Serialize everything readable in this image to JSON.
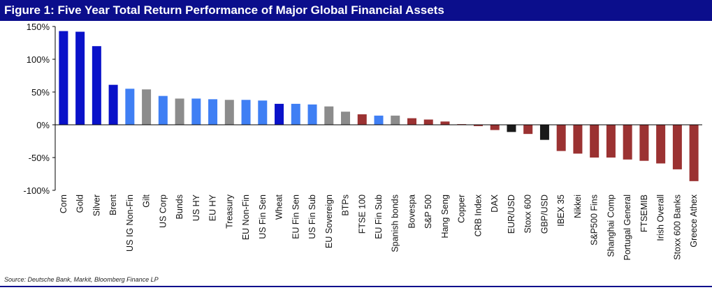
{
  "title": "Figure 1: Five Year Total Return Performance of Major Global Financial Assets",
  "source": "Source: Deutsche Bank, Markit, Bloomberg Finance LP",
  "colors": {
    "title_bg": "#0b0e8c",
    "commodity": "#0a12c9",
    "credit": "#3f7ff4",
    "govt_equity": "#8c8c8c",
    "negative": "#9b3232",
    "fx": "#1a1a1a"
  },
  "chart_data": {
    "type": "bar",
    "title": "Figure 1: Five Year Total Return Performance of Major Global Financial Assets",
    "xlabel": "",
    "ylabel": "",
    "ylim": [
      -100,
      150
    ],
    "yticks": [
      150,
      100,
      50,
      0,
      -50,
      -100
    ],
    "ytick_labels": [
      "150%",
      "100%",
      "50%",
      "0%",
      "-50%",
      "-100%"
    ],
    "grid": false,
    "categories": [
      "Corn",
      "Gold",
      "Silver",
      "Brent",
      "US IG Non-Fin",
      "Gilt",
      "US Corp",
      "Bunds",
      "US HY",
      "EU HY",
      "Treasury",
      "EU Non-Fin",
      "US Fin Sen",
      "Wheat",
      "EU Fin Sen",
      "US Fin Sub",
      "EU Sovereign",
      "BTPs",
      "FTSE 100",
      "EU Fin Sub",
      "Spanish bonds",
      "Bovespa",
      "S&P 500",
      "Hang Seng",
      "Copper",
      "CRB Index",
      "DAX",
      "EUR/USD",
      "Stoxx 600",
      "GBP/USD",
      "IBEX 35",
      "Nikkei",
      "S&P500 Fins",
      "Shanghai Comp",
      "Portugal General",
      "FTSEMIB",
      "Irish Overall",
      "Stoxx 600 Banks",
      "Greece Athex"
    ],
    "values": [
      143,
      142,
      120,
      61,
      55,
      54,
      44,
      40,
      40,
      39,
      38,
      38,
      37,
      32,
      32,
      31,
      28,
      20,
      16,
      14,
      14,
      10,
      8,
      5,
      1,
      -2,
      -8,
      -11,
      -14,
      -23,
      -40,
      -44,
      -50,
      -50,
      -53,
      -55,
      -59,
      -68,
      -86
    ],
    "bar_colors": [
      "#0a12c9",
      "#0a12c9",
      "#0a12c9",
      "#0a12c9",
      "#3f7ff4",
      "#8c8c8c",
      "#3f7ff4",
      "#8c8c8c",
      "#3f7ff4",
      "#3f7ff4",
      "#8c8c8c",
      "#3f7ff4",
      "#3f7ff4",
      "#0a12c9",
      "#3f7ff4",
      "#3f7ff4",
      "#8c8c8c",
      "#8c8c8c",
      "#9b3232",
      "#3f7ff4",
      "#8c8c8c",
      "#9b3232",
      "#9b3232",
      "#9b3232",
      "#9b3232",
      "#9b3232",
      "#9b3232",
      "#1a1a1a",
      "#9b3232",
      "#1a1a1a",
      "#9b3232",
      "#9b3232",
      "#9b3232",
      "#9b3232",
      "#9b3232",
      "#9b3232",
      "#9b3232",
      "#9b3232",
      "#9b3232"
    ]
  }
}
